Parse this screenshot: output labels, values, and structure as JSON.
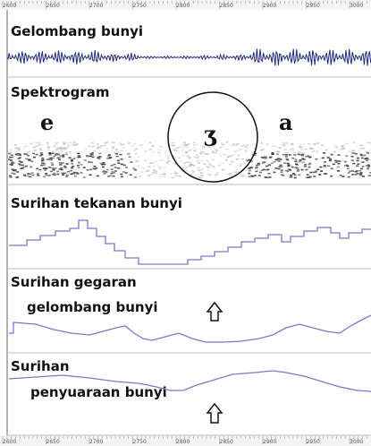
{
  "top_ruler": {
    "labels": [
      "2600",
      "2650",
      "2700",
      "2750",
      "2800",
      "2850",
      "2900",
      "2950",
      "3000"
    ]
  },
  "panels": [
    {
      "title": "Gelombang bunyi"
    },
    {
      "title": "Spektrogram",
      "segments": [
        "e",
        "ʒ",
        "a"
      ]
    },
    {
      "title": "Surihan tekanan bunyi"
    },
    {
      "title": "Surihan gegaran",
      "subtitle": "gelombang bunyi"
    },
    {
      "title": "Surihan",
      "subtitle": "penyuaraan bunyi"
    }
  ],
  "bottom_ruler": {
    "labels": [
      "2600",
      "2650",
      "2700",
      "2750",
      "2800",
      "2850",
      "2900",
      "2950",
      "3000"
    ]
  }
}
